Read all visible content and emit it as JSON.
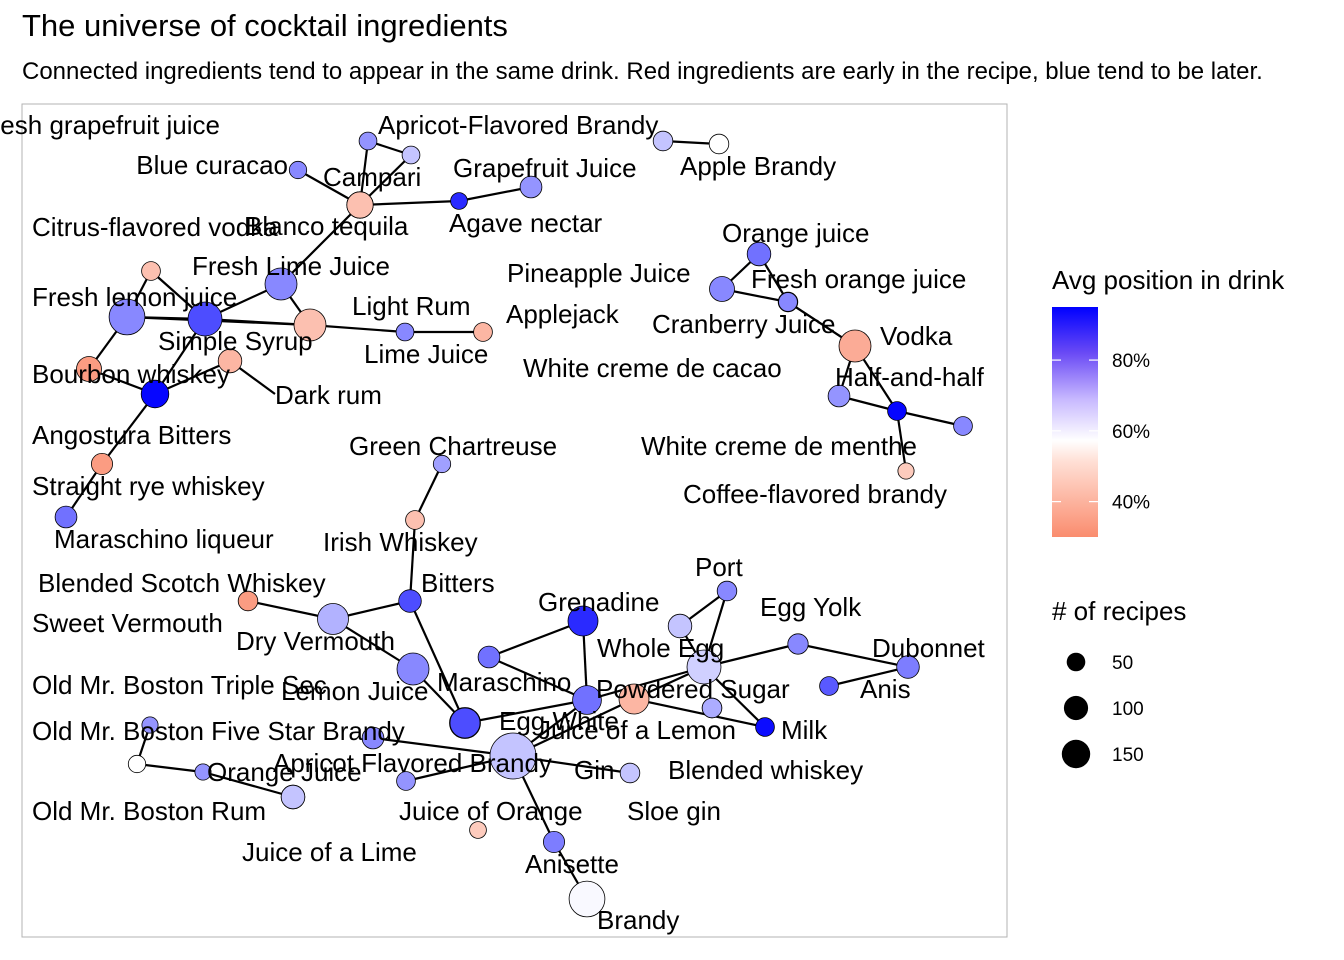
{
  "title": "The universe of cocktail ingredients",
  "subtitle": "Connected ingredients tend to appear in the same drink. Red ingredients are early in the recipe, blue tend to be later.",
  "chart_data": {
    "type": "network",
    "title": "The universe of cocktail ingredients",
    "subtitle": "Connected ingredients tend to appear in the same drink. Red ingredients are early in the recipe, blue tend to be later.",
    "legend": {
      "color": {
        "title": "Avg position in drink",
        "ticks": [
          "40%",
          "60%",
          "80%"
        ],
        "tick_values": [
          0.4,
          0.6,
          0.8
        ],
        "range": [
          0.3,
          0.95
        ],
        "low_color": "#fa8c6e",
        "mid_color": "#ffffff",
        "high_color": "#0000ff"
      },
      "size": {
        "title": "# of recipes",
        "values": [
          50,
          100,
          150
        ],
        "labels": [
          "50",
          "100",
          "150"
        ]
      }
    },
    "nodes": [
      {
        "id": "Fresh grapefruit juice",
        "label": "Fresh grapefruit juice",
        "pos": 0.7,
        "n": 10
      },
      {
        "id": "Apricot-Flavored Brandy",
        "label": "Apricot-Flavored Brandy",
        "pos": 0.62,
        "n": 10
      },
      {
        "id": "Apple Brandy",
        "label": "Apple Brandy",
        "pos": 0.62,
        "n": 14
      },
      {
        "id": "Applebrandy2",
        "label": "",
        "pos": 0.52,
        "n": 14
      },
      {
        "id": "Blue curacao",
        "label": "Blue curacao",
        "pos": 0.72,
        "n": 9
      },
      {
        "id": "Campari",
        "label": "Campari",
        "pos": 0.4,
        "n": 35
      },
      {
        "id": "Grapefruit Juice",
        "label": "Grapefruit Juice",
        "pos": 0.7,
        "n": 20
      },
      {
        "id": "Agave nectar",
        "label": "Agave nectar",
        "pos": 0.88,
        "n": 8
      },
      {
        "id": "Blanco tequila",
        "label": "Blanco tequila",
        "pos": 0.4,
        "n": 35
      },
      {
        "id": "Citrus-flavored vodka",
        "label": "Citrus-flavored vodka",
        "pos": 0.4,
        "n": 12
      },
      {
        "id": "Fresh Lime Juice",
        "label": "Fresh Lime Juice",
        "pos": 0.72,
        "n": 60
      },
      {
        "id": "Fresh lemon juice",
        "label": "Fresh lemon juice",
        "pos": 0.72,
        "n": 80
      },
      {
        "id": "Simple Syrup",
        "label": "Simple Syrup",
        "pos": 0.82,
        "n": 70
      },
      {
        "id": "Light Rum",
        "label": "Light Rum",
        "pos": 0.4,
        "n": 60
      },
      {
        "id": "Lime Juice",
        "label": "Lime Juice",
        "pos": 0.72,
        "n": 10
      },
      {
        "id": "Applejack",
        "label": "Applejack",
        "pos": 0.38,
        "n": 12
      },
      {
        "id": "Dark rum",
        "label": "Dark rum",
        "pos": 0.38,
        "n": 25
      },
      {
        "id": "Bourbon whiskey",
        "label": "Bourbon whiskey",
        "pos": 0.33,
        "n": 30
      },
      {
        "id": "Angostura Bitters",
        "label": "Angostura Bitters",
        "pos": 0.94,
        "n": 40
      },
      {
        "id": "Straight rye whiskey",
        "label": "Straight rye whiskey",
        "pos": 0.33,
        "n": 18
      },
      {
        "id": "Maraschino liqueur",
        "label": "Maraschino liqueur",
        "pos": 0.76,
        "n": 20
      },
      {
        "id": "Orange juice",
        "label": "Orange juice",
        "pos": 0.76,
        "n": 25
      },
      {
        "id": "Pineapple Juice",
        "label": "Pineapple Juice",
        "pos": 0.72,
        "n": 30
      },
      {
        "id": "Fresh orange juice",
        "label": "Fresh orange juice",
        "pos": 0.74,
        "n": 14
      },
      {
        "id": "Cranberry Juice",
        "label": "Cranberry Juice",
        "pos": 0.72,
        "n": 12
      },
      {
        "id": "Vodka",
        "label": "Vodka",
        "pos": 0.36,
        "n": 60
      },
      {
        "id": "White creme de cacao",
        "label": "White creme de cacao",
        "pos": 0.7,
        "n": 20
      },
      {
        "id": "Half-and-half",
        "label": "Half-and-half",
        "pos": 0.94,
        "n": 12
      },
      {
        "id": "White creme de menthe",
        "label": "White creme de menthe",
        "pos": 0.72,
        "n": 12
      },
      {
        "id": "Coffee-flavored brandy",
        "label": "Coffee-flavored brandy",
        "pos": 0.42,
        "n": 7
      },
      {
        "id": "Green Chartreuse",
        "label": "Green Chartreuse",
        "pos": 0.68,
        "n": 9
      },
      {
        "id": "Irish Whiskey",
        "label": "Irish Whiskey",
        "pos": 0.4,
        "n": 12
      },
      {
        "id": "Bitters",
        "label": "Bitters",
        "pos": 0.82,
        "n": 22
      },
      {
        "id": "Blended Scotch Whiskey",
        "label": "Blended Scotch Whiskey",
        "pos": 0.33,
        "n": 14
      },
      {
        "id": "Sweet Vermouth",
        "label": "Sweet Vermouth",
        "pos": 0.65,
        "n": 55
      },
      {
        "id": "Dry Vermouth",
        "label": "Dry Vermouth",
        "pos": 0.72,
        "n": 60
      },
      {
        "id": "Lemon Juice",
        "label": "Lemon Juice",
        "pos": 0.82,
        "n": 55
      },
      {
        "id": "Maraschino",
        "label": "Maraschino",
        "pos": 0.76,
        "n": 20
      },
      {
        "id": "Grenadine",
        "label": "Grenadine",
        "pos": 0.88,
        "n": 50
      },
      {
        "id": "Port",
        "label": "Port",
        "pos": 0.72,
        "n": 14
      },
      {
        "id": "Whole Egg",
        "label": "Whole Egg",
        "pos": 0.62,
        "n": 25
      },
      {
        "id": "Egg Yolk",
        "label": "Egg Yolk",
        "pos": 0.72,
        "n": 16
      },
      {
        "id": "Dubonnet",
        "label": "Dubonnet",
        "pos": 0.74,
        "n": 22
      },
      {
        "id": "Anis",
        "label": "Anis",
        "pos": 0.8,
        "n": 12
      },
      {
        "id": "Powdered Sugar",
        "label": "Powdered Sugar",
        "pos": 0.6,
        "n": 70
      },
      {
        "id": "Milk",
        "label": "Milk",
        "pos": 0.93,
        "n": 12
      },
      {
        "id": "Egg White",
        "label": "Egg White",
        "pos": 0.76,
        "n": 45
      },
      {
        "id": "Juice of a Lemon",
        "label": "Juice of a Lemon",
        "pos": 0.38,
        "n": 50
      },
      {
        "id": "Juice of a Lemon2",
        "label": "",
        "pos": 0.7,
        "n": 14
      },
      {
        "id": "Blended whiskey",
        "label": "Blended whiskey",
        "pos": 0.66,
        "n": 14
      },
      {
        "id": "Sloe gin",
        "label": "Sloe gin",
        "pos": 0.62,
        "n": 14
      },
      {
        "id": "Gin",
        "label": "Gin",
        "pos": 0.62,
        "n": 150
      },
      {
        "id": "Apricot Flavored Brandy",
        "label": "Apricot Flavored Brandy",
        "pos": 0.72,
        "n": 20
      },
      {
        "id": "Juice of Orange",
        "label": "Juice of Orange",
        "pos": 0.7,
        "n": 12
      },
      {
        "id": "Juice of Orange2",
        "label": "",
        "pos": 0.42,
        "n": 8
      },
      {
        "id": "Anisette",
        "label": "Anisette",
        "pos": 0.74,
        "n": 18
      },
      {
        "id": "Brandy",
        "label": "Brandy",
        "pos": 0.53,
        "n": 80
      },
      {
        "id": "Old Mr. Boston Triple Sec",
        "label": "Old Mr. Boston Triple Sec",
        "pos": 0.7,
        "n": 7
      },
      {
        "id": "Old Mr. Boston Five Star Brandy",
        "label": "Old Mr. Boston Five Star Brandy",
        "pos": 0.52,
        "n": 9
      },
      {
        "id": "Orange Juice",
        "label": "Orange Juice",
        "pos": 0.7,
        "n": 7
      },
      {
        "id": "Old Mr. Boston Rum",
        "label": "Old Mr. Boston Rum",
        "pos": 0.62,
        "n": 25
      },
      {
        "id": "Juice of a Lime",
        "label": "Juice of a Lime",
        "pos": 0.62,
        "n": 25
      },
      {
        "id": "Maraschino liqueur2",
        "label": "",
        "pos": 0.82,
        "n": 50
      }
    ],
    "edges": [
      [
        "Fresh grapefruit juice",
        "Campari"
      ],
      [
        "Fresh grapefruit juice",
        "Apricot-Flavored Brandy"
      ],
      [
        "Apricot-Flavored Brandy",
        "Campari"
      ],
      [
        "Apple Brandy",
        "Applebrandy2"
      ],
      [
        "Blue curacao",
        "Campari"
      ],
      [
        "Campari",
        "Agave nectar"
      ],
      [
        "Agave nectar",
        "Grapefruit Juice"
      ],
      [
        "Campari",
        "Fresh Lime Juice"
      ],
      [
        "Fresh Lime Juice",
        "Simple Syrup"
      ],
      [
        "Fresh Lime Juice",
        "Light Rum"
      ],
      [
        "Citrus-flavored vodka",
        "Fresh lemon juice"
      ],
      [
        "Citrus-flavored vodka",
        "Simple Syrup"
      ],
      [
        "Fresh lemon juice",
        "Simple Syrup"
      ],
      [
        "Fresh lemon juice",
        "Bourbon whiskey"
      ],
      [
        "Fresh lemon juice",
        "Light Rum"
      ],
      [
        "Simple Syrup",
        "Angostura Bitters"
      ],
      [
        "Light Rum",
        "Lime Juice"
      ],
      [
        "Lime Juice",
        "Applejack"
      ],
      [
        "Light Rum",
        "Simple Syrup"
      ],
      [
        "Dark rum",
        "Angostura Bitters"
      ],
      [
        "Dark rum",
        "Dark rum label"
      ],
      [
        "Bourbon whiskey",
        "Angostura Bitters"
      ],
      [
        "Angostura Bitters",
        "Straight rye whiskey"
      ],
      [
        "Straight rye whiskey",
        "Maraschino liqueur"
      ],
      [
        "Orange juice",
        "Pineapple Juice"
      ],
      [
        "Orange juice",
        "Fresh orange juice"
      ],
      [
        "Pineapple Juice",
        "Fresh orange juice"
      ],
      [
        "Fresh orange juice",
        "Vodka"
      ],
      [
        "Vodka",
        "Cranberry Juice"
      ],
      [
        "Vodka",
        "White creme de cacao"
      ],
      [
        "Vodka",
        "Half-and-half"
      ],
      [
        "White creme de cacao",
        "Half-and-half"
      ],
      [
        "Half-and-half",
        "White creme de menthe"
      ],
      [
        "Half-and-half",
        "Coffee-flavored brandy"
      ],
      [
        "Green Chartreuse",
        "Irish Whiskey"
      ],
      [
        "Irish Whiskey",
        "Bitters"
      ],
      [
        "Bitters",
        "Sweet Vermouth"
      ],
      [
        "Blended Scotch Whiskey",
        "Sweet Vermouth"
      ],
      [
        "Sweet Vermouth",
        "Dry Vermouth"
      ],
      [
        "Bitters",
        "Lemon Juice"
      ],
      [
        "Dry Vermouth",
        "Lemon Juice"
      ],
      [
        "Lemon Juice",
        "Egg White"
      ],
      [
        "Maraschino",
        "Grenadine label"
      ],
      [
        "Grenadine",
        "Egg White"
      ],
      [
        "Maraschino",
        "Egg White"
      ],
      [
        "Egg White",
        "Powdered Sugar"
      ],
      [
        "Port",
        "Whole Egg"
      ],
      [
        "Port",
        "Powdered Sugar"
      ],
      [
        "Whole Egg",
        "Powdered Sugar"
      ],
      [
        "Egg Yolk",
        "Powdered Sugar"
      ],
      [
        "Egg Yolk",
        "Dubonnet"
      ],
      [
        "Powdered Sugar",
        "Milk"
      ],
      [
        "Powdered Sugar",
        "Juice of a Lemon"
      ],
      [
        "Juice of a Lemon",
        "Milk"
      ],
      [
        "Anis",
        "Dubonnet"
      ],
      [
        "Egg White",
        "Gin"
      ],
      [
        "Juice of a Lemon",
        "Gin"
      ],
      [
        "Gin",
        "Apricot Flavored Brandy"
      ],
      [
        "Gin",
        "Juice of Orange"
      ],
      [
        "Gin",
        "Anisette"
      ],
      [
        "Anisette",
        "Brandy"
      ],
      [
        "Gin",
        "Sloe gin"
      ],
      [
        "Old Mr. Boston Triple Sec",
        "Old Mr. Boston Five Star Brandy"
      ],
      [
        "Old Mr. Boston Five Star Brandy",
        "Orange Juice"
      ],
      [
        "Orange Juice",
        "Old Mr. Boston Rum"
      ],
      [
        "Old Mr. Boston Rum",
        "Juice of a Lime"
      ]
    ]
  }
}
